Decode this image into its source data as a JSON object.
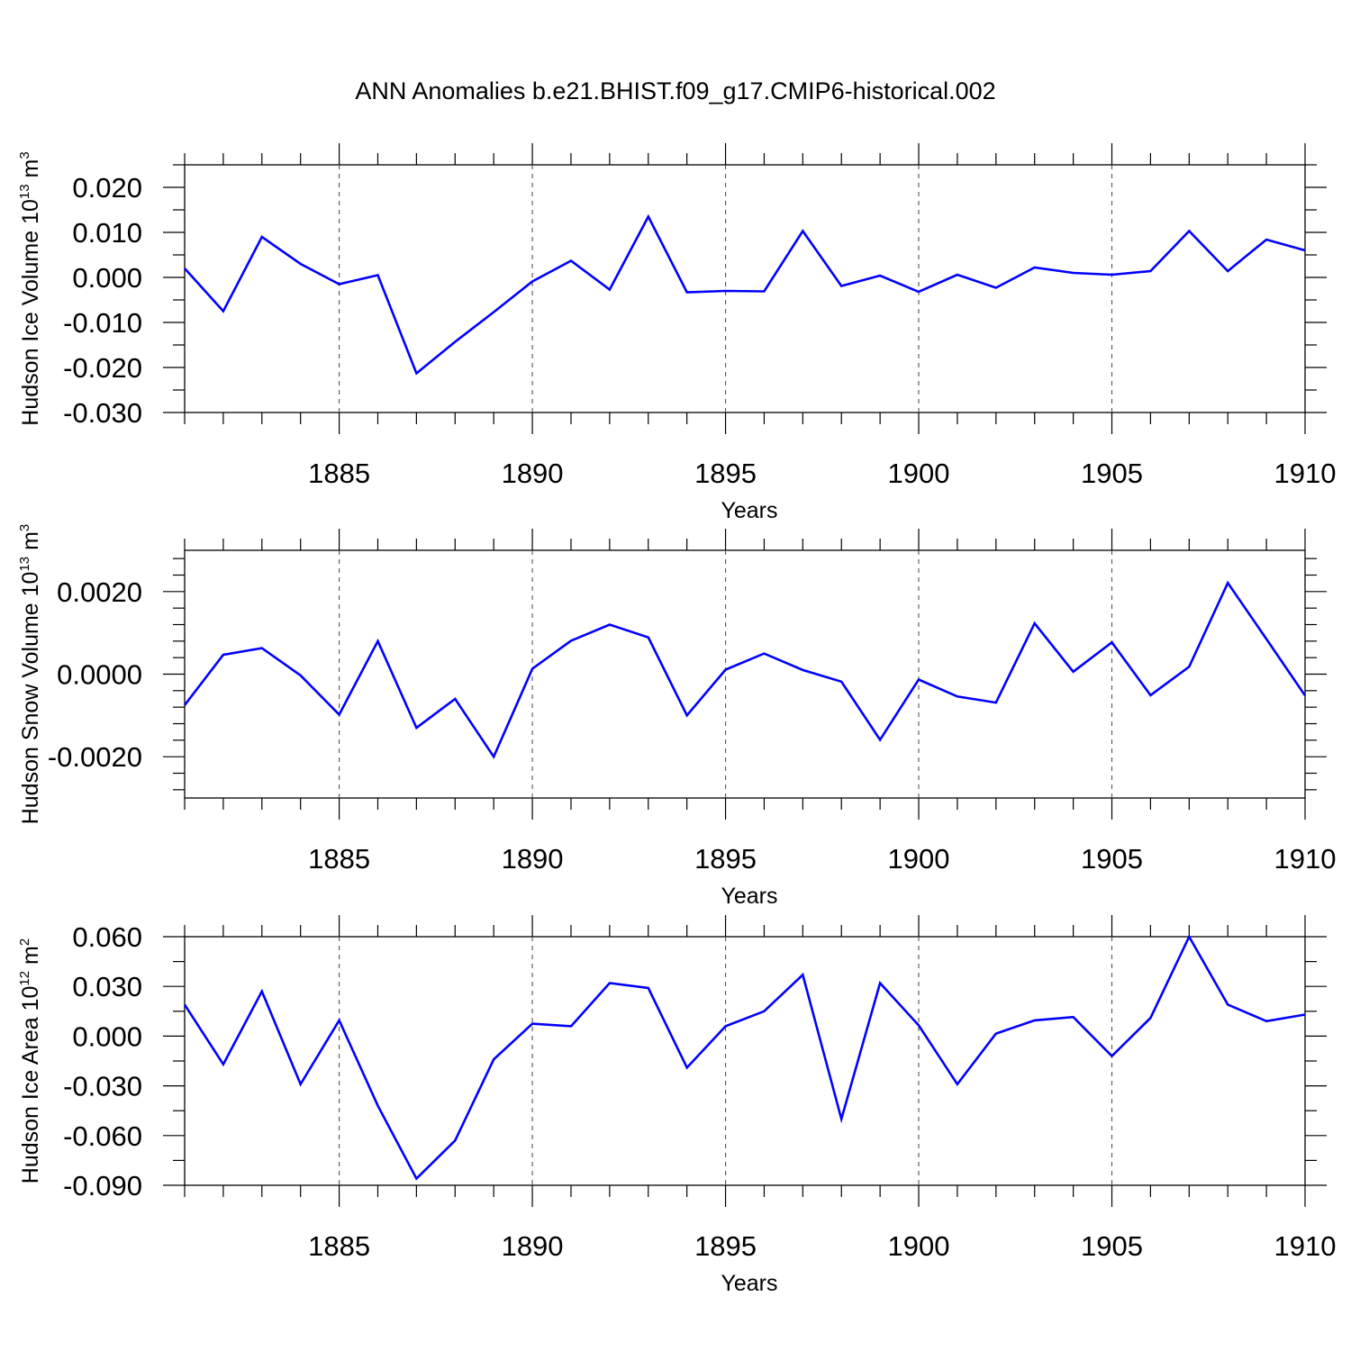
{
  "title": "ANN Anomalies b.e21.BHIST.f09_g17.CMIP6-historical.002",
  "colors": {
    "line": "#0000ff",
    "axes": "#000000",
    "grid": "#555555"
  },
  "chart_data": [
    {
      "type": "line",
      "ylabel_main": "Hudson Ice Volume 10",
      "ylabel_exp": "13",
      "ylabel_unit": " m",
      "ylabel_unit_exp": "3",
      "xlabel": "Years",
      "xlim": [
        1881,
        1910
      ],
      "ylim": [
        -0.03,
        0.025
      ],
      "yticks": [
        -0.03,
        -0.02,
        -0.01,
        0.0,
        0.01,
        0.02
      ],
      "ytick_labels": [
        "-0.030",
        "-0.020",
        "-0.010",
        "0.000",
        "0.010",
        "0.020"
      ],
      "xticks": [
        1885,
        1890,
        1895,
        1900,
        1905,
        1910
      ],
      "xtick_labels": [
        "1885",
        "1890",
        "1895",
        "1900",
        "1905",
        "1910"
      ],
      "grid": "vertical dashed at major x ticks",
      "series": [
        {
          "x": [
            1881,
            1882,
            1883,
            1884,
            1885,
            1886,
            1887,
            1888,
            1889,
            1890,
            1891,
            1892,
            1893,
            1894,
            1895,
            1896,
            1897,
            1898,
            1899,
            1900,
            1901,
            1902,
            1903,
            1904,
            1905,
            1906,
            1907,
            1908,
            1909,
            1910
          ],
          "values": [
            0.002,
            -0.0075,
            0.009,
            0.003,
            -0.0015,
            0.0005,
            -0.0213,
            -0.0143,
            -0.0077,
            -0.0009,
            0.0037,
            -0.0027,
            0.0135,
            -0.0033,
            -0.003,
            -0.0031,
            0.0103,
            -0.0019,
            0.0004,
            -0.0032,
            0.0006,
            -0.0023,
            0.0022,
            0.001,
            0.0006,
            0.0014,
            0.0103,
            0.0014,
            0.0084,
            0.006
          ]
        }
      ]
    },
    {
      "type": "line",
      "ylabel_main": "Hudson Snow Volume 10",
      "ylabel_exp": "13",
      "ylabel_unit": " m",
      "ylabel_unit_exp": "3",
      "xlabel": "Years",
      "xlim": [
        1881,
        1910
      ],
      "ylim": [
        -0.003,
        0.003
      ],
      "yticks": [
        -0.002,
        0.0,
        0.002
      ],
      "ytick_labels": [
        "-0.0020",
        "0.0000",
        "0.0020"
      ],
      "xticks": [
        1885,
        1890,
        1895,
        1900,
        1905,
        1910
      ],
      "xtick_labels": [
        "1885",
        "1890",
        "1895",
        "1900",
        "1905",
        "1910"
      ],
      "grid": "vertical dashed at major x ticks",
      "series": [
        {
          "x": [
            1881,
            1882,
            1883,
            1884,
            1885,
            1886,
            1887,
            1888,
            1889,
            1890,
            1891,
            1892,
            1893,
            1894,
            1895,
            1896,
            1897,
            1898,
            1899,
            1900,
            1901,
            1902,
            1903,
            1904,
            1905,
            1906,
            1907,
            1908,
            1909,
            1910
          ],
          "values": [
            -0.00075,
            0.00047,
            0.00063,
            -3e-05,
            -0.00098,
            0.0008,
            -0.0013,
            -0.0006,
            -0.002,
            0.00013,
            0.00081,
            0.0012,
            0.00089,
            -0.001,
            0.00011,
            0.0005,
            0.0001,
            -0.00018,
            -0.00159,
            -0.00013,
            -0.00054,
            -0.00069,
            0.00123,
            6e-05,
            0.00077,
            -0.00051,
            0.00018,
            0.00221,
            0.00085,
            -0.00052
          ]
        }
      ]
    },
    {
      "type": "line",
      "ylabel_main": "Hudson Ice Area 10",
      "ylabel_exp": "12",
      "ylabel_unit": " m",
      "ylabel_unit_exp": "2",
      "xlabel": "Years",
      "xlim": [
        1881,
        1910
      ],
      "ylim": [
        -0.09,
        0.06
      ],
      "yticks": [
        -0.09,
        -0.06,
        -0.03,
        0.0,
        0.03,
        0.06
      ],
      "ytick_labels": [
        "-0.090",
        "-0.060",
        "-0.030",
        "0.000",
        "0.030",
        "0.060"
      ],
      "xticks": [
        1885,
        1890,
        1895,
        1900,
        1905,
        1910
      ],
      "xtick_labels": [
        "1885",
        "1890",
        "1895",
        "1900",
        "1905",
        "1910"
      ],
      "grid": "vertical dashed at major x ticks",
      "series": [
        {
          "x": [
            1881,
            1882,
            1883,
            1884,
            1885,
            1886,
            1887,
            1888,
            1889,
            1890,
            1891,
            1892,
            1893,
            1894,
            1895,
            1896,
            1897,
            1898,
            1899,
            1900,
            1901,
            1902,
            1903,
            1904,
            1905,
            1906,
            1907,
            1908,
            1909,
            1910
          ],
          "values": [
            0.019,
            -0.017,
            0.027,
            -0.029,
            0.0095,
            -0.042,
            -0.086,
            -0.063,
            -0.014,
            0.0075,
            0.006,
            0.032,
            0.029,
            -0.019,
            0.006,
            0.015,
            0.037,
            -0.05,
            0.032,
            0.0065,
            -0.029,
            0.0015,
            0.0095,
            0.0115,
            -0.012,
            0.011,
            0.06,
            0.019,
            0.009,
            0.013
          ]
        }
      ]
    }
  ]
}
